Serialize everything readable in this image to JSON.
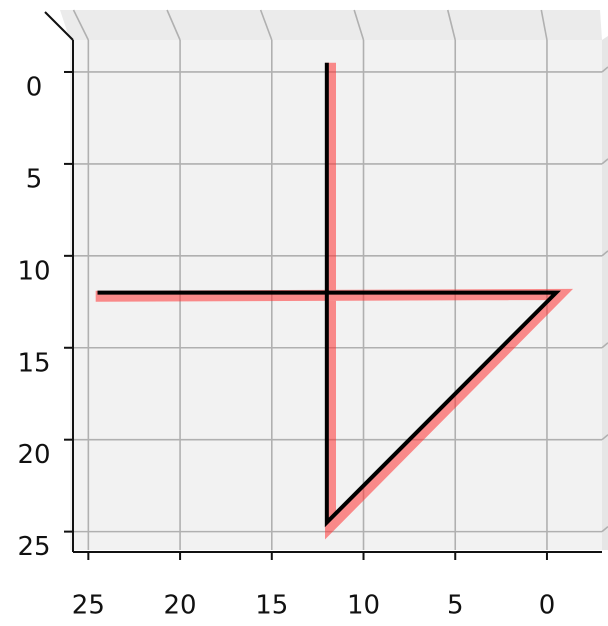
{
  "chart_data": {
    "type": "line",
    "xlim": [
      26,
      -3
    ],
    "ylim": [
      -1.5,
      26
    ],
    "xticks": [
      25,
      20,
      15,
      10,
      5,
      0
    ],
    "yticks": [
      0,
      5,
      10,
      15,
      20,
      25
    ],
    "grid": true,
    "series": [
      {
        "color": "#ff3333",
        "x": [
          11.8,
          11.8,
          -0.7,
          24.6
        ],
        "y": [
          -0.5,
          24.7,
          12.1,
          12.2
        ]
      },
      {
        "color": "#000000",
        "x": [
          12,
          12,
          -0.5,
          24.5
        ],
        "y": [
          -0.5,
          24.5,
          12,
          12
        ]
      }
    ]
  }
}
